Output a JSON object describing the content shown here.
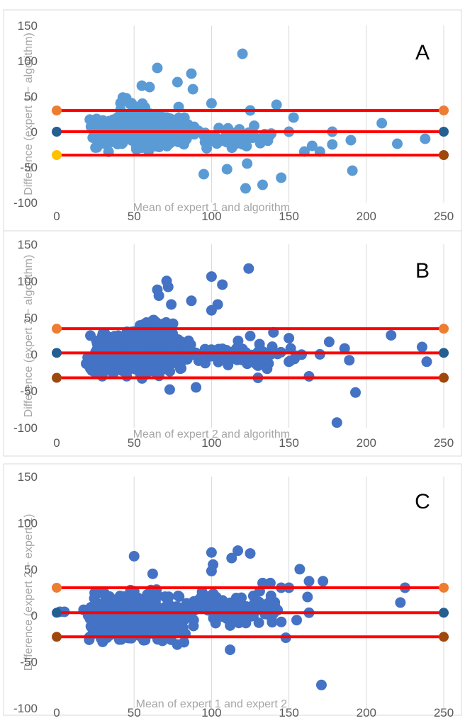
{
  "chart_data": [
    {
      "type": "scatter",
      "panel_label": "A",
      "xlabel": "Mean of expert 1 and algorithm",
      "ylabel": "Difference (expert 1 − algorithm)",
      "xlim": [
        0,
        250
      ],
      "ylim": [
        -100,
        150
      ],
      "xticks": [
        "0",
        "50",
        "100",
        "150",
        "200",
        "250"
      ],
      "yticks": [
        "-100",
        "-50",
        "0",
        "50",
        "100",
        "150"
      ],
      "grid": true,
      "point_color": "#5b9bd5",
      "outlier_points": [
        {
          "x": 120,
          "y": 110
        },
        {
          "x": 65,
          "y": 90
        },
        {
          "x": 87,
          "y": 82
        },
        {
          "x": 88,
          "y": 60
        },
        {
          "x": 55,
          "y": 65
        },
        {
          "x": 60,
          "y": 63
        },
        {
          "x": 142,
          "y": 38
        },
        {
          "x": 210,
          "y": 12
        },
        {
          "x": 238,
          "y": -10
        },
        {
          "x": 220,
          "y": -17
        },
        {
          "x": 191,
          "y": -55
        },
        {
          "x": 145,
          "y": -65
        },
        {
          "x": 133,
          "y": -75
        },
        {
          "x": 122,
          "y": -80
        },
        {
          "x": 123,
          "y": -45
        },
        {
          "x": 110,
          "y": -53
        },
        {
          "x": 95,
          "y": -60
        },
        {
          "x": 150,
          "y": 0
        },
        {
          "x": 165,
          "y": -20
        },
        {
          "x": 178,
          "y": 0
        },
        {
          "x": 178,
          "y": -18
        },
        {
          "x": 190,
          "y": -12
        },
        {
          "x": 160,
          "y": -28
        },
        {
          "x": 170,
          "y": -28
        },
        {
          "x": 78,
          "y": 70
        },
        {
          "x": 100,
          "y": 40
        },
        {
          "x": 125,
          "y": 30
        },
        {
          "x": 153,
          "y": 20
        }
      ],
      "cluster": [
        {
          "x_min": 20,
          "x_max": 90,
          "y_min": -35,
          "y_max": 38,
          "n": 330
        },
        {
          "x_min": 35,
          "x_max": 70,
          "y_min": -15,
          "y_max": 55,
          "n": 60
        },
        {
          "x_min": 80,
          "x_max": 145,
          "y_min": -30,
          "y_max": 15,
          "n": 60
        }
      ],
      "reference_lines": [
        {
          "role": "upper limit",
          "y": 30,
          "color": "#ff0000",
          "marker_color": "#ed7d31"
        },
        {
          "role": "mean",
          "y": 0,
          "color": "#ff0000",
          "marker_color": "#255e91"
        },
        {
          "role": "lower limit",
          "y": -33,
          "color": "#ff0000",
          "marker_color": "#ffc000",
          "end_marker_color": "#9e480e"
        }
      ]
    },
    {
      "type": "scatter",
      "panel_label": "B",
      "xlabel": "Mean of expert 2 and algorithm",
      "ylabel": "Difference (expert 2 − algorithm)",
      "xlim": [
        0,
        250
      ],
      "ylim": [
        -100,
        150
      ],
      "xticks": [
        "0",
        "50",
        "100",
        "150",
        "200",
        "250"
      ],
      "yticks": [
        "-100",
        "-50",
        "0",
        "50",
        "100",
        "150"
      ],
      "grid": true,
      "point_color": "#4472c4",
      "outlier_points": [
        {
          "x": 124,
          "y": 117
        },
        {
          "x": 100,
          "y": 106
        },
        {
          "x": 71,
          "y": 100
        },
        {
          "x": 107,
          "y": 95
        },
        {
          "x": 65,
          "y": 88
        },
        {
          "x": 72,
          "y": 92
        },
        {
          "x": 66,
          "y": 80
        },
        {
          "x": 87,
          "y": 73
        },
        {
          "x": 104,
          "y": 68
        },
        {
          "x": 100,
          "y": 60
        },
        {
          "x": 74,
          "y": 68
        },
        {
          "x": 216,
          "y": 26
        },
        {
          "x": 236,
          "y": 10
        },
        {
          "x": 239,
          "y": -10
        },
        {
          "x": 193,
          "y": -52
        },
        {
          "x": 181,
          "y": -93
        },
        {
          "x": 163,
          "y": -30
        },
        {
          "x": 150,
          "y": -10
        },
        {
          "x": 170,
          "y": 0
        },
        {
          "x": 176,
          "y": 17
        },
        {
          "x": 186,
          "y": 8
        },
        {
          "x": 189,
          "y": -8
        },
        {
          "x": 140,
          "y": 30
        },
        {
          "x": 150,
          "y": 22
        },
        {
          "x": 125,
          "y": 25
        },
        {
          "x": 130,
          "y": -32
        },
        {
          "x": 90,
          "y": -45
        },
        {
          "x": 73,
          "y": -48
        }
      ],
      "cluster": [
        {
          "x_min": 15,
          "x_max": 90,
          "y_min": -40,
          "y_max": 40,
          "n": 420
        },
        {
          "x_min": 45,
          "x_max": 80,
          "y_min": 0,
          "y_max": 60,
          "n": 70
        },
        {
          "x_min": 80,
          "x_max": 160,
          "y_min": -25,
          "y_max": 20,
          "n": 90
        }
      ],
      "reference_lines": [
        {
          "role": "upper limit",
          "y": 35,
          "color": "#ff0000",
          "marker_color": "#ed7d31"
        },
        {
          "role": "mean",
          "y": 2,
          "color": "#ff0000",
          "marker_color": "#255e91"
        },
        {
          "role": "lower limit",
          "y": -32,
          "color": "#ff0000",
          "marker_color": "#9e480e"
        }
      ]
    },
    {
      "type": "scatter",
      "panel_label": "C",
      "xlabel": "Mean of expert 1 and expert 2",
      "ylabel": "Difference (expert 2 − expert 1)",
      "xlim": [
        0,
        250
      ],
      "ylim": [
        -100,
        150
      ],
      "xticks": [
        "0",
        "50",
        "100",
        "150",
        "200",
        "250"
      ],
      "yticks": [
        "-100",
        "-50",
        "0",
        "50",
        "100",
        "150"
      ],
      "grid": true,
      "point_color": "#4472c4",
      "outlier_points": [
        {
          "x": 117,
          "y": 70
        },
        {
          "x": 125,
          "y": 67
        },
        {
          "x": 100,
          "y": 68
        },
        {
          "x": 113,
          "y": 62
        },
        {
          "x": 101,
          "y": 55
        },
        {
          "x": 100,
          "y": 48
        },
        {
          "x": 50,
          "y": 64
        },
        {
          "x": 62,
          "y": 45
        },
        {
          "x": 157,
          "y": 50
        },
        {
          "x": 172,
          "y": 37
        },
        {
          "x": 163,
          "y": 37
        },
        {
          "x": 225,
          "y": 30
        },
        {
          "x": 222,
          "y": 14
        },
        {
          "x": 171,
          "y": -75
        },
        {
          "x": 148,
          "y": -24
        },
        {
          "x": 112,
          "y": -37
        },
        {
          "x": 162,
          "y": 20
        },
        {
          "x": 155,
          "y": -5
        },
        {
          "x": 163,
          "y": 3
        },
        {
          "x": 145,
          "y": 30
        },
        {
          "x": 133,
          "y": 35
        },
        {
          "x": 130,
          "y": 15
        },
        {
          "x": 138,
          "y": 35
        },
        {
          "x": 150,
          "y": 30
        },
        {
          "x": 2,
          "y": 4
        },
        {
          "x": 5,
          "y": 4
        }
      ],
      "cluster": [
        {
          "x_min": 15,
          "x_max": 90,
          "y_min": -38,
          "y_max": 35,
          "n": 420
        },
        {
          "x_min": 80,
          "x_max": 150,
          "y_min": -15,
          "y_max": 30,
          "n": 100
        }
      ],
      "reference_lines": [
        {
          "role": "upper limit",
          "y": 30,
          "color": "#ff0000",
          "marker_color": "#ed7d31"
        },
        {
          "role": "mean",
          "y": 3,
          "color": "#ff0000",
          "marker_color": "#255e91"
        },
        {
          "role": "lower limit",
          "y": -23,
          "color": "#ff0000",
          "marker_color": "#9e480e"
        }
      ]
    }
  ]
}
